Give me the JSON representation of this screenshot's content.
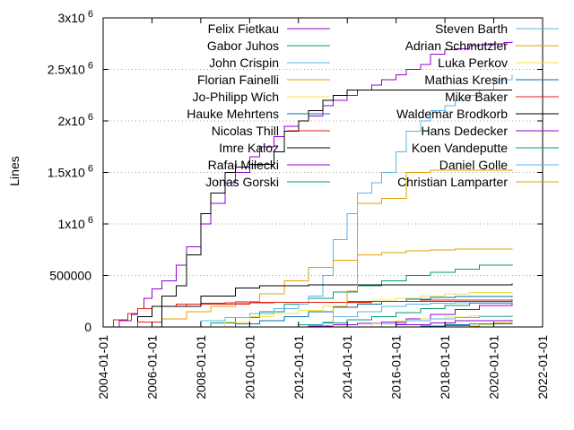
{
  "chart_data": {
    "type": "line",
    "title": "",
    "xlabel": "",
    "ylabel": "Lines",
    "xlim": [
      "2004-01-01",
      "2022-01-01"
    ],
    "ylim": [
      0,
      3000000
    ],
    "grid": "y-dotted",
    "legend_position": "top, two columns",
    "x_ticks": [
      "2004-01-01",
      "2006-01-01",
      "2008-01-01",
      "2010-01-01",
      "2012-01-01",
      "2014-01-01",
      "2016-01-01",
      "2018-01-01",
      "2020-01-01",
      "2022-01-01"
    ],
    "y_ticks": [
      {
        "value": 0,
        "label": "0",
        "exp": ""
      },
      {
        "value": 500000,
        "label": "500000",
        "exp": ""
      },
      {
        "value": 1000000,
        "label": "1x10",
        "exp": "6"
      },
      {
        "value": 1500000,
        "label": "1.5x10",
        "exp": "6"
      },
      {
        "value": 2000000,
        "label": "2x10",
        "exp": "6"
      },
      {
        "value": 2500000,
        "label": "2.5x10",
        "exp": "6"
      },
      {
        "value": 3000000,
        "label": "3x10",
        "exp": "6"
      }
    ],
    "series": [
      {
        "name": "Felix Fietkau",
        "color": "#9400d3",
        "points": [
          [
            "2004-06-01",
            0
          ],
          [
            "2004-09-01",
            60000
          ],
          [
            "2005-03-01",
            120000
          ],
          [
            "2005-06-01",
            180000
          ],
          [
            "2005-09-01",
            280000
          ],
          [
            "2006-01-01",
            370000
          ],
          [
            "2006-06-01",
            450000
          ],
          [
            "2007-01-01",
            600000
          ],
          [
            "2007-06-01",
            780000
          ],
          [
            "2008-01-01",
            1000000
          ],
          [
            "2008-06-01",
            1200000
          ],
          [
            "2009-01-01",
            1400000
          ],
          [
            "2009-06-01",
            1500000
          ],
          [
            "2010-01-01",
            1650000
          ],
          [
            "2010-06-01",
            1750000
          ],
          [
            "2011-01-01",
            1850000
          ],
          [
            "2011-06-01",
            1950000
          ],
          [
            "2012-01-01",
            2000000
          ],
          [
            "2012-06-01",
            2050000
          ],
          [
            "2013-01-01",
            2150000
          ],
          [
            "2013-06-01",
            2200000
          ],
          [
            "2014-01-01",
            2250000
          ],
          [
            "2014-06-01",
            2300000
          ],
          [
            "2015-01-01",
            2350000
          ],
          [
            "2015-06-01",
            2400000
          ],
          [
            "2016-01-01",
            2450000
          ],
          [
            "2016-06-01",
            2500000
          ],
          [
            "2017-01-01",
            2550000
          ],
          [
            "2017-06-01",
            2650000
          ],
          [
            "2018-01-01",
            2690000
          ],
          [
            "2018-06-01",
            2700000
          ],
          [
            "2019-01-01",
            2730000
          ],
          [
            "2019-06-01",
            2740000
          ],
          [
            "2020-01-01",
            2750000
          ],
          [
            "2020-06-01",
            2760000
          ],
          [
            "2020-10-01",
            2770000
          ]
        ]
      },
      {
        "name": "Gabor Juhos",
        "color": "#009e73",
        "points": [
          [
            "2007-06-01",
            0
          ],
          [
            "2008-06-01",
            40000
          ],
          [
            "2009-06-01",
            90000
          ],
          [
            "2010-06-01",
            150000
          ],
          [
            "2011-06-01",
            220000
          ],
          [
            "2012-06-01",
            280000
          ],
          [
            "2013-06-01",
            340000
          ],
          [
            "2014-06-01",
            400000
          ],
          [
            "2015-06-01",
            450000
          ],
          [
            "2016-06-01",
            500000
          ],
          [
            "2017-06-01",
            530000
          ],
          [
            "2018-06-01",
            560000
          ],
          [
            "2019-06-01",
            600000
          ],
          [
            "2020-10-01",
            610000
          ]
        ]
      },
      {
        "name": "John Crispin",
        "color": "#56b4e9",
        "points": [
          [
            "2007-01-01",
            0
          ],
          [
            "2008-01-01",
            60000
          ],
          [
            "2009-01-01",
            90000
          ],
          [
            "2010-01-01",
            130000
          ],
          [
            "2011-01-01",
            180000
          ],
          [
            "2012-01-01",
            220000
          ],
          [
            "2012-06-01",
            300000
          ],
          [
            "2013-01-01",
            500000
          ],
          [
            "2013-06-01",
            850000
          ],
          [
            "2014-01-01",
            1100000
          ],
          [
            "2014-06-01",
            1300000
          ],
          [
            "2015-01-01",
            1400000
          ],
          [
            "2015-06-01",
            1500000
          ],
          [
            "2016-01-01",
            1700000
          ],
          [
            "2016-06-01",
            1900000
          ],
          [
            "2017-01-01",
            2000000
          ],
          [
            "2017-06-01",
            2100000
          ],
          [
            "2018-01-01",
            2150000
          ],
          [
            "2018-06-01",
            2200000
          ],
          [
            "2019-01-01",
            2250000
          ],
          [
            "2019-06-01",
            2300000
          ],
          [
            "2020-01-01",
            2400000
          ],
          [
            "2020-10-01",
            2450000
          ]
        ]
      },
      {
        "name": "Florian Fainelli",
        "color": "#e69f00",
        "points": [
          [
            "2005-06-01",
            0
          ],
          [
            "2006-06-01",
            80000
          ],
          [
            "2007-06-01",
            150000
          ],
          [
            "2008-06-01",
            200000
          ],
          [
            "2009-06-01",
            250000
          ],
          [
            "2010-06-01",
            320000
          ],
          [
            "2011-06-01",
            450000
          ],
          [
            "2012-06-01",
            580000
          ],
          [
            "2013-06-01",
            650000
          ],
          [
            "2014-06-01",
            700000
          ],
          [
            "2015-06-01",
            720000
          ],
          [
            "2016-06-01",
            740000
          ],
          [
            "2017-06-01",
            750000
          ],
          [
            "2018-06-01",
            755000
          ],
          [
            "2020-10-01",
            760000
          ]
        ]
      },
      {
        "name": "Jo-Philipp Wich",
        "color": "#f0e442",
        "points": [
          [
            "2008-01-01",
            0
          ],
          [
            "2009-01-01",
            50000
          ],
          [
            "2010-01-01",
            100000
          ],
          [
            "2011-01-01",
            130000
          ],
          [
            "2012-01-01",
            160000
          ],
          [
            "2013-01-01",
            200000
          ],
          [
            "2014-01-01",
            230000
          ],
          [
            "2015-01-01",
            260000
          ],
          [
            "2016-01-01",
            280000
          ],
          [
            "2017-01-01",
            300000
          ],
          [
            "2018-01-01",
            320000
          ],
          [
            "2019-01-01",
            335000
          ],
          [
            "2020-10-01",
            345000
          ]
        ]
      },
      {
        "name": "Hauke Mehrtens",
        "color": "#0072b2",
        "points": [
          [
            "2008-06-01",
            0
          ],
          [
            "2009-06-01",
            30000
          ],
          [
            "2010-06-01",
            60000
          ],
          [
            "2011-06-01",
            100000
          ],
          [
            "2012-06-01",
            150000
          ],
          [
            "2013-06-01",
            190000
          ],
          [
            "2014-06-01",
            220000
          ],
          [
            "2015-06-01",
            250000
          ],
          [
            "2016-06-01",
            270000
          ],
          [
            "2017-06-01",
            285000
          ],
          [
            "2018-06-01",
            295000
          ],
          [
            "2020-10-01",
            305000
          ]
        ]
      },
      {
        "name": "Nicolas Thill",
        "color": "#e51e10",
        "points": [
          [
            "2004-01-01",
            0
          ],
          [
            "2004-06-01",
            70000
          ],
          [
            "2005-01-01",
            130000
          ],
          [
            "2005-06-01",
            180000
          ],
          [
            "2006-01-01",
            200000
          ],
          [
            "2007-01-01",
            220000
          ],
          [
            "2008-01-01",
            230000
          ],
          [
            "2009-01-01",
            235000
          ],
          [
            "2011-01-01",
            240000
          ],
          [
            "2014-01-01",
            250000
          ],
          [
            "2017-01-01",
            260000
          ],
          [
            "2020-10-01",
            270000
          ]
        ]
      },
      {
        "name": "Imre Kaloz",
        "color": "#000000",
        "points": [
          [
            "2004-06-01",
            0
          ],
          [
            "2005-06-01",
            100000
          ],
          [
            "2006-01-01",
            200000
          ],
          [
            "2006-06-01",
            300000
          ],
          [
            "2007-01-01",
            400000
          ],
          [
            "2007-06-01",
            700000
          ],
          [
            "2008-01-01",
            1100000
          ],
          [
            "2008-06-01",
            1300000
          ],
          [
            "2009-01-01",
            1500000
          ],
          [
            "2009-06-01",
            1550000
          ],
          [
            "2010-01-01",
            1580000
          ],
          [
            "2011-01-01",
            1700000
          ],
          [
            "2011-06-01",
            1900000
          ],
          [
            "2012-01-01",
            2000000
          ],
          [
            "2012-06-01",
            2100000
          ],
          [
            "2013-01-01",
            2200000
          ],
          [
            "2013-06-01",
            2250000
          ],
          [
            "2014-01-01",
            2300000
          ],
          [
            "2020-10-01",
            2300000
          ]
        ]
      },
      {
        "name": "Rafał Miłecki",
        "color": "#9400d3",
        "points": [
          [
            "2011-06-01",
            0
          ],
          [
            "2012-06-01",
            10000
          ],
          [
            "2013-06-01",
            20000
          ],
          [
            "2014-06-01",
            35000
          ],
          [
            "2015-06-01",
            50000
          ],
          [
            "2016-06-01",
            80000
          ],
          [
            "2017-06-01",
            120000
          ],
          [
            "2018-06-01",
            170000
          ],
          [
            "2019-06-01",
            210000
          ],
          [
            "2020-10-01",
            240000
          ]
        ]
      },
      {
        "name": "Jonas Gorski",
        "color": "#009e73",
        "points": [
          [
            "2011-01-01",
            0
          ],
          [
            "2012-01-01",
            20000
          ],
          [
            "2013-01-01",
            40000
          ],
          [
            "2014-01-01",
            70000
          ],
          [
            "2015-01-01",
            100000
          ],
          [
            "2016-01-01",
            140000
          ],
          [
            "2017-01-01",
            180000
          ],
          [
            "2018-01-01",
            210000
          ],
          [
            "2019-01-01",
            230000
          ],
          [
            "2020-10-01",
            245000
          ]
        ]
      },
      {
        "name": "Steven Barth",
        "color": "#56b4e9",
        "points": [
          [
            "2012-06-01",
            0
          ],
          [
            "2013-01-01",
            50000
          ],
          [
            "2013-06-01",
            100000
          ],
          [
            "2014-06-01",
            150000
          ],
          [
            "2015-06-01",
            200000
          ],
          [
            "2016-06-01",
            220000
          ],
          [
            "2017-06-01",
            230000
          ],
          [
            "2018-06-01",
            235000
          ],
          [
            "2020-10-01",
            240000
          ]
        ]
      },
      {
        "name": "Adrian Schmutzler",
        "color": "#e69f00",
        "points": [
          [
            "2018-06-01",
            0
          ],
          [
            "2019-01-01",
            10000
          ],
          [
            "2019-06-01",
            25000
          ],
          [
            "2020-01-01",
            40000
          ],
          [
            "2020-10-01",
            50000
          ]
        ]
      },
      {
        "name": "Luka Perkov",
        "color": "#f0e442",
        "points": [
          [
            "2014-01-01",
            0
          ],
          [
            "2015-01-01",
            30000
          ],
          [
            "2016-01-01",
            60000
          ],
          [
            "2017-01-01",
            80000
          ],
          [
            "2018-01-01",
            95000
          ],
          [
            "2019-01-01",
            110000
          ],
          [
            "2020-10-01",
            120000
          ]
        ]
      },
      {
        "name": "Mathias Kresin",
        "color": "#0072b2",
        "points": [
          [
            "2016-01-01",
            0
          ],
          [
            "2017-01-01",
            10000
          ],
          [
            "2018-01-01",
            20000
          ],
          [
            "2019-01-01",
            30000
          ],
          [
            "2020-10-01",
            35000
          ]
        ]
      },
      {
        "name": "Mike Baker",
        "color": "#e51e10",
        "points": [
          [
            "2005-01-01",
            0
          ],
          [
            "2005-06-01",
            50000
          ],
          [
            "2006-06-01",
            200000
          ],
          [
            "2007-06-01",
            220000
          ],
          [
            "2010-01-01",
            240000
          ],
          [
            "2015-01-01",
            250000
          ],
          [
            "2020-10-01",
            255000
          ]
        ]
      },
      {
        "name": "Waldemar Brodkorb",
        "color": "#000000",
        "points": [
          [
            "2005-06-01",
            0
          ],
          [
            "2006-06-01",
            200000
          ],
          [
            "2008-01-01",
            300000
          ],
          [
            "2009-06-01",
            380000
          ],
          [
            "2010-06-01",
            400000
          ],
          [
            "2012-06-01",
            410000
          ],
          [
            "2020-10-01",
            420000
          ]
        ]
      },
      {
        "name": "Hans Dedecker",
        "color": "#9400d3",
        "points": [
          [
            "2014-06-01",
            0
          ],
          [
            "2016-01-01",
            20000
          ],
          [
            "2017-06-01",
            40000
          ],
          [
            "2018-06-01",
            60000
          ],
          [
            "2020-10-01",
            70000
          ]
        ]
      },
      {
        "name": "Koen Vandeputte",
        "color": "#009e73",
        "points": [
          [
            "2017-01-01",
            0
          ],
          [
            "2018-01-01",
            15000
          ],
          [
            "2019-01-01",
            30000
          ],
          [
            "2020-10-01",
            40000
          ]
        ]
      },
      {
        "name": "Daniel Golle",
        "color": "#56b4e9",
        "points": [
          [
            "2014-06-01",
            0
          ],
          [
            "2015-06-01",
            30000
          ],
          [
            "2016-06-01",
            60000
          ],
          [
            "2017-06-01",
            80000
          ],
          [
            "2018-06-01",
            90000
          ],
          [
            "2019-06-01",
            100000
          ],
          [
            "2020-10-01",
            110000
          ]
        ]
      },
      {
        "name": "Christian Lamparter",
        "color": "#e69f00",
        "points": [
          [
            "2012-06-01",
            0
          ],
          [
            "2013-06-01",
            200000
          ],
          [
            "2014-01-01",
            350000
          ],
          [
            "2014-06-01",
            1200000
          ],
          [
            "2015-06-01",
            1250000
          ],
          [
            "2016-06-01",
            1500000
          ],
          [
            "2017-06-01",
            1520000
          ],
          [
            "2020-10-01",
            1530000
          ]
        ]
      }
    ]
  }
}
